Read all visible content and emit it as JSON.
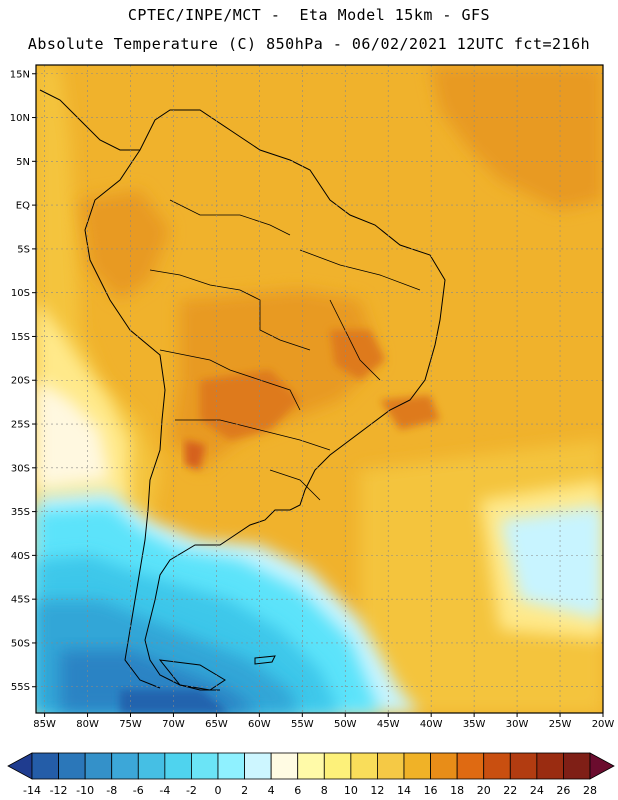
{
  "header": {
    "line1": "CPTEC/INPE/MCT -  Eta Model 15km - GFS",
    "line2": "Absolute Temperature (C) 850hPa - 06/02/2021 12UTC fct=216h"
  },
  "map": {
    "lon_range": [
      -86,
      -20
    ],
    "lat_range": [
      -58,
      16
    ],
    "lat_labels": [
      {
        "value": 15,
        "text": "15N"
      },
      {
        "value": 10,
        "text": "10N"
      },
      {
        "value": 5,
        "text": "5N"
      },
      {
        "value": 0,
        "text": "EQ"
      },
      {
        "value": -5,
        "text": "5S"
      },
      {
        "value": -10,
        "text": "10S"
      },
      {
        "value": -15,
        "text": "15S"
      },
      {
        "value": -20,
        "text": "20S"
      },
      {
        "value": -25,
        "text": "25S"
      },
      {
        "value": -30,
        "text": "30S"
      },
      {
        "value": -35,
        "text": "35S"
      },
      {
        "value": -40,
        "text": "40S"
      },
      {
        "value": -45,
        "text": "45S"
      },
      {
        "value": -50,
        "text": "50S"
      },
      {
        "value": -55,
        "text": "55S"
      }
    ],
    "lon_labels": [
      {
        "value": -85,
        "text": "85W"
      },
      {
        "value": -80,
        "text": "80W"
      },
      {
        "value": -75,
        "text": "75W"
      },
      {
        "value": -70,
        "text": "70W"
      },
      {
        "value": -65,
        "text": "65W"
      },
      {
        "value": -60,
        "text": "60W"
      },
      {
        "value": -55,
        "text": "55W"
      },
      {
        "value": -50,
        "text": "50W"
      },
      {
        "value": -45,
        "text": "45W"
      },
      {
        "value": -40,
        "text": "40W"
      },
      {
        "value": -35,
        "text": "35W"
      },
      {
        "value": -30,
        "text": "30W"
      },
      {
        "value": -25,
        "text": "25W"
      },
      {
        "value": -20,
        "text": "20W"
      }
    ],
    "colors": {
      "hot_orange": "#E89A22",
      "warm_orange": "#F0B22C",
      "gold": "#F4C43C",
      "light_yellow": "#FFE98A",
      "pale_yellow": "#FFF3B8",
      "cream": "#FFF8E0",
      "pale_cyan": "#C8F4FF",
      "cyan": "#5BE3FA",
      "light_blue": "#3DC7EA",
      "mid_blue": "#33A6D7",
      "blue": "#2B83C4",
      "dark_blue": "#2163AE",
      "deep_orange": "#DE7A1A",
      "red_orange": "#D5601A",
      "coast": "#000000"
    }
  },
  "colorbar": {
    "colors": [
      "#1f3c8f",
      "#245da8",
      "#2b77b9",
      "#3491c9",
      "#3ca7d8",
      "#45bfe4",
      "#4fd3ee",
      "#6be4f6",
      "#8ff1ff",
      "#cdf6ff",
      "#fffbe3",
      "#fffaa8",
      "#fdf17a",
      "#f9dd5a",
      "#f5c945",
      "#f0b227",
      "#e88d18",
      "#df6a12",
      "#c94f10",
      "#b23c11",
      "#9a2c11",
      "#7f1f16",
      "#6b0c2e"
    ],
    "labels": [
      "-14",
      "-12",
      "-10",
      "-8",
      "-6",
      "-4",
      "-2",
      "0",
      "2",
      "4",
      "6",
      "8",
      "10",
      "12",
      "14",
      "16",
      "18",
      "20",
      "22",
      "24",
      "26",
      "28"
    ]
  }
}
